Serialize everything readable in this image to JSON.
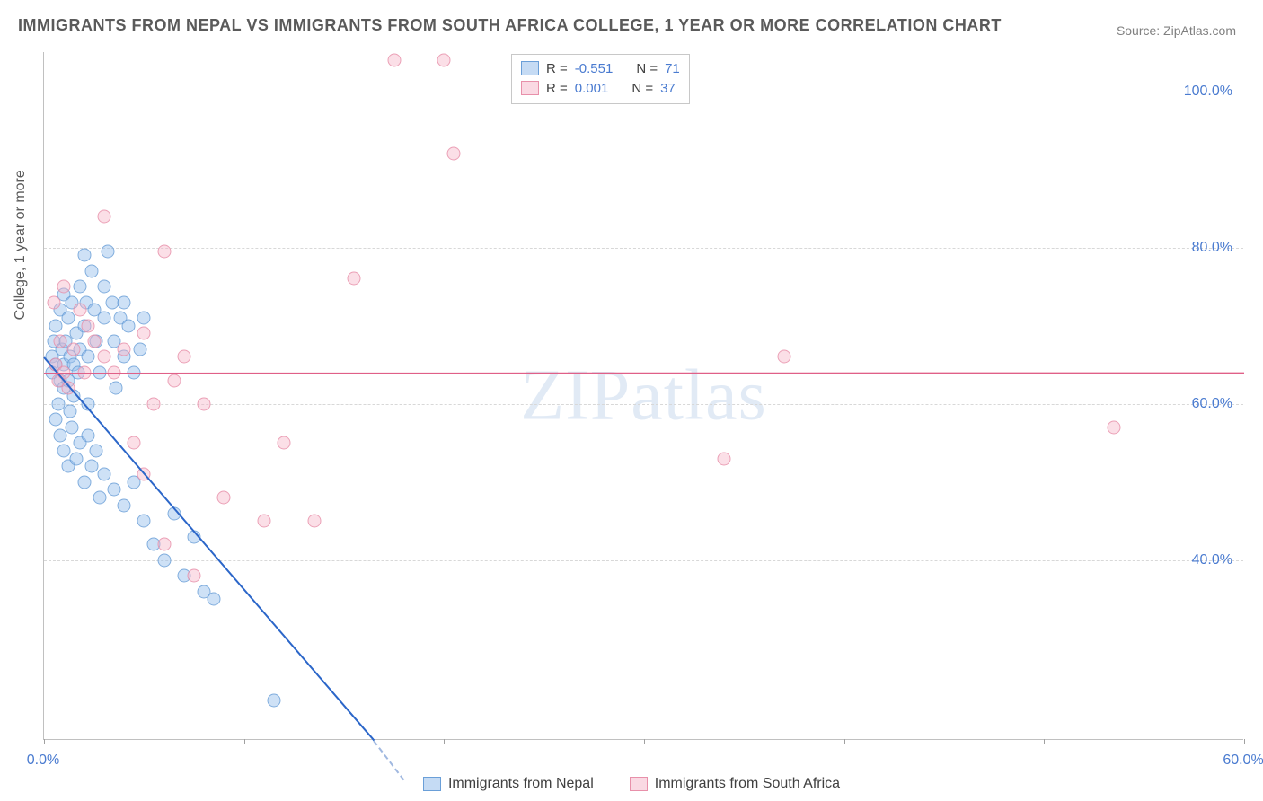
{
  "title": "IMMIGRANTS FROM NEPAL VS IMMIGRANTS FROM SOUTH AFRICA COLLEGE, 1 YEAR OR MORE CORRELATION CHART",
  "source": "Source: ZipAtlas.com",
  "ylabel": "College, 1 year or more",
  "watermark": "ZIPatlas",
  "chart": {
    "type": "scatter",
    "xlim": [
      0,
      60
    ],
    "ylim": [
      17,
      105
    ],
    "xticks": [
      0,
      10,
      20,
      30,
      40,
      50,
      60
    ],
    "xtick_labels": {
      "0": "0.0%",
      "60": "60.0%"
    },
    "yticks": [
      40,
      60,
      80,
      100
    ],
    "ytick_labels": {
      "40": "40.0%",
      "60": "60.0%",
      "80": "80.0%",
      "100": "100.0%"
    },
    "grid_color": "#d8d8d8",
    "background": "#ffffff",
    "marker_size": 15,
    "marker_opacity": 0.65,
    "series": [
      {
        "name": "Immigrants from Nepal",
        "color_fill": "rgba(150,190,235,0.55)",
        "color_stroke": "#6a9fd8",
        "class": "blue",
        "R": "-0.551",
        "N": "71",
        "trend": {
          "x1": 0,
          "y1": 66,
          "x2": 16.5,
          "y2": 17,
          "color": "#2b66c9"
        },
        "points": [
          [
            0.4,
            66
          ],
          [
            0.4,
            64
          ],
          [
            0.5,
            68
          ],
          [
            0.6,
            65
          ],
          [
            0.6,
            70
          ],
          [
            0.7,
            60
          ],
          [
            0.8,
            72
          ],
          [
            0.8,
            63
          ],
          [
            0.9,
            67
          ],
          [
            1.0,
            65
          ],
          [
            1.0,
            62
          ],
          [
            1.0,
            74
          ],
          [
            1.1,
            68
          ],
          [
            1.2,
            71
          ],
          [
            1.2,
            63
          ],
          [
            1.3,
            66
          ],
          [
            1.3,
            59
          ],
          [
            1.4,
            73
          ],
          [
            1.5,
            65
          ],
          [
            1.5,
            61
          ],
          [
            1.6,
            69
          ],
          [
            1.7,
            64
          ],
          [
            1.8,
            75
          ],
          [
            1.8,
            67
          ],
          [
            2.0,
            70
          ],
          [
            2.0,
            79
          ],
          [
            2.1,
            73
          ],
          [
            2.2,
            66
          ],
          [
            2.2,
            60
          ],
          [
            2.4,
            77
          ],
          [
            2.5,
            72
          ],
          [
            2.6,
            68
          ],
          [
            2.8,
            64
          ],
          [
            3.0,
            75
          ],
          [
            3.0,
            71
          ],
          [
            3.2,
            79.5
          ],
          [
            3.4,
            73
          ],
          [
            3.5,
            68
          ],
          [
            3.6,
            62
          ],
          [
            3.8,
            71
          ],
          [
            4.0,
            73
          ],
          [
            4.0,
            66
          ],
          [
            4.2,
            70
          ],
          [
            4.5,
            64
          ],
          [
            4.8,
            67
          ],
          [
            5.0,
            71
          ],
          [
            0.6,
            58
          ],
          [
            0.8,
            56
          ],
          [
            1.0,
            54
          ],
          [
            1.2,
            52
          ],
          [
            1.4,
            57
          ],
          [
            1.6,
            53
          ],
          [
            1.8,
            55
          ],
          [
            2.0,
            50
          ],
          [
            2.2,
            56
          ],
          [
            2.4,
            52
          ],
          [
            2.6,
            54
          ],
          [
            2.8,
            48
          ],
          [
            3.0,
            51
          ],
          [
            3.5,
            49
          ],
          [
            4.0,
            47
          ],
          [
            4.5,
            50
          ],
          [
            5.0,
            45
          ],
          [
            5.5,
            42
          ],
          [
            6.0,
            40
          ],
          [
            6.5,
            46
          ],
          [
            7.0,
            38
          ],
          [
            7.5,
            43
          ],
          [
            8.0,
            36
          ],
          [
            8.5,
            35
          ],
          [
            11.5,
            22
          ]
        ]
      },
      {
        "name": "Immigrants from South Africa",
        "color_fill": "rgba(245,180,200,0.5)",
        "color_stroke": "#e890aa",
        "class": "pink",
        "R": "0.001",
        "N": "37",
        "trend": {
          "x1": 0,
          "y1": 64,
          "x2": 60,
          "y2": 64.05,
          "color": "#e06088"
        },
        "points": [
          [
            0.5,
            73
          ],
          [
            0.6,
            65
          ],
          [
            0.7,
            63
          ],
          [
            0.8,
            68
          ],
          [
            1.0,
            64
          ],
          [
            1.0,
            75
          ],
          [
            1.2,
            62
          ],
          [
            1.5,
            67
          ],
          [
            1.8,
            72
          ],
          [
            2.0,
            64
          ],
          [
            2.2,
            70
          ],
          [
            2.5,
            68
          ],
          [
            3.0,
            66
          ],
          [
            3.5,
            64
          ],
          [
            4.0,
            67
          ],
          [
            5.0,
            69
          ],
          [
            5.5,
            60
          ],
          [
            6.0,
            79.5
          ],
          [
            6.5,
            63
          ],
          [
            7.0,
            66
          ],
          [
            8.0,
            60
          ],
          [
            3.0,
            84
          ],
          [
            4.5,
            55
          ],
          [
            5.0,
            51
          ],
          [
            6.0,
            42
          ],
          [
            7.5,
            38
          ],
          [
            9.0,
            48
          ],
          [
            11.0,
            45
          ],
          [
            12.0,
            55
          ],
          [
            13.5,
            45
          ],
          [
            15.5,
            76
          ],
          [
            17.5,
            104
          ],
          [
            20.0,
            104
          ],
          [
            20.5,
            92
          ],
          [
            34.0,
            53
          ],
          [
            37.0,
            66
          ],
          [
            53.5,
            57
          ]
        ]
      }
    ],
    "legend_top": {
      "rows": [
        {
          "swatch": "blue",
          "r_label": "R =",
          "r_val": "-0.551",
          "n_label": "N =",
          "n_val": "71"
        },
        {
          "swatch": "pink",
          "r_label": "R =",
          "r_val": "0.001",
          "n_label": "N =",
          "n_val": "37"
        }
      ]
    },
    "legend_bottom": [
      {
        "swatch": "blue",
        "label": "Immigrants from Nepal"
      },
      {
        "swatch": "pink",
        "label": "Immigrants from South Africa"
      }
    ]
  },
  "colors": {
    "title": "#5a5a5a",
    "source": "#808080",
    "axis_text": "#4a7bd0",
    "watermark": "rgba(170,195,225,0.35)"
  },
  "fonts": {
    "title_size": 18,
    "label_size": 16,
    "legend_size": 15,
    "watermark_size": 80
  }
}
